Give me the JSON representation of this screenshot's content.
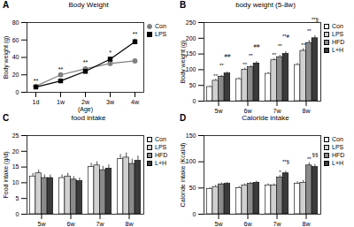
{
  "chart_data": [
    {
      "panel": "A",
      "type": "line",
      "title": "Body Weight",
      "x_label": "(Age)",
      "y_label": "Body weight (g)",
      "categories": [
        "1d",
        "1w",
        "2w",
        "3w",
        "4w"
      ],
      "series": [
        {
          "name": "Con",
          "color": "#808080",
          "marker": "circle",
          "values": [
            7,
            20,
            27,
            33,
            36
          ],
          "errors": [
            0.5,
            1,
            1.5,
            2,
            2.5
          ]
        },
        {
          "name": "LPS",
          "color": "#000000",
          "marker": "square",
          "values": [
            6,
            13,
            24,
            38,
            58
          ],
          "errors": [
            0.5,
            1,
            1.5,
            2.5,
            3
          ]
        }
      ],
      "ylim": [
        0,
        80
      ],
      "yticks": [
        0,
        20,
        40,
        60,
        80
      ],
      "legend": "right",
      "annotations": [
        {
          "category": "1d",
          "text": "**"
        },
        {
          "category": "1w",
          "text": "**"
        },
        {
          "category": "2w",
          "text": "**"
        },
        {
          "category": "3w",
          "text": "*"
        },
        {
          "category": "4w",
          "text": "**"
        }
      ]
    },
    {
      "panel": "B",
      "type": "bar",
      "title": "body weight (5-8w)",
      "y_label": "Body weight (g)",
      "categories": [
        "5w",
        "6w",
        "7w",
        "8w"
      ],
      "series": [
        {
          "name": "Con",
          "color": "#ffffff",
          "values": [
            45,
            70,
            87,
            115
          ],
          "errors": [
            3,
            4,
            4,
            5
          ]
        },
        {
          "name": "LPS",
          "color": "#d0d0d0",
          "values": [
            65,
            100,
            130,
            160
          ],
          "errors": [
            4,
            5,
            6,
            7
          ]
        },
        {
          "name": "HFD",
          "color": "#8a8a8a",
          "values": [
            78,
            108,
            140,
            185
          ],
          "errors": [
            4,
            5,
            6,
            8
          ]
        },
        {
          "name": "L+H",
          "color": "#3a3a3a",
          "values": [
            88,
            120,
            150,
            200
          ],
          "errors": [
            5,
            6,
            7,
            8
          ]
        }
      ],
      "ylim": [
        0,
        250
      ],
      "yticks": [
        0,
        50,
        100,
        150,
        200,
        250
      ],
      "legend": "right",
      "annotations": [
        {
          "category": "5w",
          "series": "LPS",
          "text": "**"
        },
        {
          "category": "5w",
          "series": "HFD",
          "text": "**"
        },
        {
          "category": "5w",
          "series": "L+H",
          "text": "##"
        },
        {
          "category": "6w",
          "series": "LPS",
          "text": "**"
        },
        {
          "category": "6w",
          "series": "HFD",
          "text": "**"
        },
        {
          "category": "6w",
          "series": "L+H",
          "text": "##"
        },
        {
          "category": "7w",
          "series": "LPS",
          "text": "**"
        },
        {
          "category": "7w",
          "series": "HFD",
          "text": "**"
        },
        {
          "category": "7w",
          "series": "L+H",
          "text": "**#"
        },
        {
          "category": "8w",
          "series": "LPS",
          "text": "**"
        },
        {
          "category": "8w",
          "series": "HFD",
          "text": "**"
        },
        {
          "category": "8w",
          "series": "L+H",
          "text": "**§"
        }
      ]
    },
    {
      "panel": "C",
      "type": "bar",
      "title": "food intake",
      "y_label": "Food intake (g/d)",
      "categories": [
        "5w",
        "6w",
        "7w",
        "8w"
      ],
      "series": [
        {
          "name": "Con",
          "color": "#ffffff",
          "values": [
            12,
            11.5,
            15,
            17.5
          ],
          "errors": [
            1,
            1,
            1.2,
            1.5
          ]
        },
        {
          "name": "LPS",
          "color": "#d0d0d0",
          "values": [
            13,
            12,
            15.5,
            18
          ],
          "errors": [
            1,
            1,
            1.2,
            1.5
          ]
        },
        {
          "name": "HFD",
          "color": "#8a8a8a",
          "values": [
            11.5,
            11,
            14,
            16
          ],
          "errors": [
            1,
            1,
            1.2,
            1.5
          ]
        },
        {
          "name": "L+H",
          "color": "#3a3a3a",
          "values": [
            11.5,
            10.5,
            14.5,
            17
          ],
          "errors": [
            1,
            1,
            1.2,
            1.5
          ]
        }
      ],
      "ylim": [
        0,
        25
      ],
      "yticks": [
        0,
        5,
        10,
        15,
        20,
        25
      ],
      "legend": "right"
    },
    {
      "panel": "D",
      "type": "bar",
      "title": "Caloride intake",
      "y_label": "Caloride intake (Kcal/d)",
      "categories": [
        "5w",
        "6w",
        "7w",
        "8w"
      ],
      "series": [
        {
          "name": "Con",
          "color": "#ffffff",
          "values": [
            48,
            50,
            55,
            58
          ],
          "errors": [
            3,
            3,
            3,
            4
          ]
        },
        {
          "name": "LPS",
          "color": "#d0d0d0",
          "values": [
            52,
            55,
            55,
            60
          ],
          "errors": [
            3,
            3,
            3,
            4
          ]
        },
        {
          "name": "HFD",
          "color": "#8a8a8a",
          "values": [
            57,
            58,
            70,
            93
          ],
          "errors": [
            3,
            3,
            4,
            5
          ]
        },
        {
          "name": "L+H",
          "color": "#3a3a3a",
          "values": [
            58,
            60,
            78,
            90
          ],
          "errors": [
            3,
            3,
            4,
            5
          ]
        }
      ],
      "ylim": [
        0,
        150
      ],
      "yticks": [
        0,
        50,
        100,
        150
      ],
      "legend": "right",
      "annotations": [
        {
          "category": "7w",
          "series": "HFD",
          "text": "*"
        },
        {
          "category": "7w",
          "series": "L+H",
          "text": "**§"
        },
        {
          "category": "8w",
          "series": "HFD",
          "text": "**"
        },
        {
          "category": "8w",
          "series": "L+H",
          "text": "§§"
        }
      ]
    }
  ]
}
